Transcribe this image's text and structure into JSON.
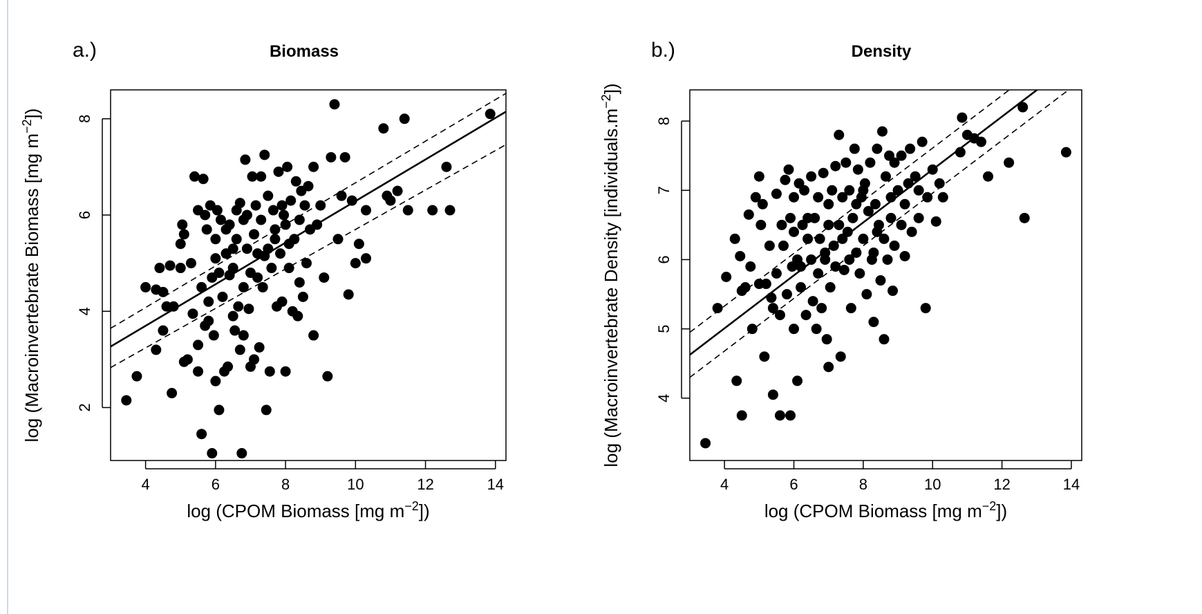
{
  "chart_data": [
    {
      "type": "scatter",
      "panel_label": "a.)",
      "title": "Biomass",
      "xlabel": "log (CPOM Biomass [mg m⁻²])",
      "ylabel": "log (Macroinvertebrate Biomass [mg m⁻²])",
      "xlim": [
        3.0,
        14.3
      ],
      "ylim": [
        0.9,
        8.6
      ],
      "xticks": [
        "4",
        "6",
        "8",
        "10",
        "12",
        "14"
      ],
      "yticks": [
        "2",
        "4",
        "6",
        "8"
      ],
      "fit": {
        "intercept": 1.97,
        "slope": 0.432
      },
      "ci_upper": {
        "intercept": 2.35,
        "slope": 0.432
      },
      "ci_lower": {
        "intercept": 1.6,
        "slope": 0.41
      },
      "points": [
        [
          3.45,
          2.15
        ],
        [
          3.75,
          2.65
        ],
        [
          4.0,
          4.5
        ],
        [
          4.3,
          4.45
        ],
        [
          4.3,
          3.2
        ],
        [
          4.4,
          4.9
        ],
        [
          4.5,
          4.4
        ],
        [
          4.5,
          3.6
        ],
        [
          4.6,
          4.1
        ],
        [
          4.7,
          4.95
        ],
        [
          4.75,
          2.3
        ],
        [
          4.8,
          4.1
        ],
        [
          5.0,
          4.9
        ],
        [
          5.0,
          5.4
        ],
        [
          5.05,
          5.8
        ],
        [
          5.1,
          2.95
        ],
        [
          5.1,
          5.6
        ],
        [
          5.2,
          3.0
        ],
        [
          5.3,
          5.0
        ],
        [
          5.35,
          3.95
        ],
        [
          5.4,
          6.8
        ],
        [
          5.5,
          3.3
        ],
        [
          5.5,
          2.75
        ],
        [
          5.5,
          6.1
        ],
        [
          5.6,
          4.5
        ],
        [
          5.6,
          1.45
        ],
        [
          5.65,
          6.75
        ],
        [
          5.7,
          3.7
        ],
        [
          5.7,
          6.0
        ],
        [
          5.75,
          5.7
        ],
        [
          5.8,
          4.2
        ],
        [
          5.8,
          3.8
        ],
        [
          5.85,
          6.2
        ],
        [
          5.9,
          1.05
        ],
        [
          5.9,
          4.7
        ],
        [
          5.95,
          3.5
        ],
        [
          6.0,
          2.55
        ],
        [
          6.0,
          5.5
        ],
        [
          6.05,
          6.1
        ],
        [
          6.1,
          4.8
        ],
        [
          6.1,
          1.95
        ],
        [
          6.15,
          5.9
        ],
        [
          6.2,
          4.3
        ],
        [
          6.25,
          2.75
        ],
        [
          6.3,
          5.2
        ],
        [
          6.35,
          2.85
        ],
        [
          6.4,
          4.75
        ],
        [
          6.4,
          5.8
        ],
        [
          6.5,
          3.9
        ],
        [
          6.5,
          4.9
        ],
        [
          6.55,
          3.6
        ],
        [
          6.6,
          5.5
        ],
        [
          6.6,
          6.1
        ],
        [
          6.65,
          4.1
        ],
        [
          6.7,
          3.2
        ],
        [
          6.7,
          6.25
        ],
        [
          6.75,
          1.05
        ],
        [
          6.8,
          3.5
        ],
        [
          6.8,
          4.5
        ],
        [
          6.85,
          7.15
        ],
        [
          6.9,
          5.3
        ],
        [
          6.9,
          6.0
        ],
        [
          6.95,
          4.05
        ],
        [
          7.0,
          4.8
        ],
        [
          7.0,
          2.85
        ],
        [
          7.05,
          6.8
        ],
        [
          7.1,
          5.6
        ],
        [
          7.1,
          3.0
        ],
        [
          7.15,
          6.2
        ],
        [
          7.2,
          4.7
        ],
        [
          7.25,
          3.25
        ],
        [
          7.3,
          5.9
        ],
        [
          7.3,
          6.8
        ],
        [
          7.35,
          4.5
        ],
        [
          7.4,
          7.25
        ],
        [
          7.4,
          5.15
        ],
        [
          7.45,
          1.95
        ],
        [
          7.5,
          5.3
        ],
        [
          7.5,
          6.4
        ],
        [
          7.55,
          2.75
        ],
        [
          7.6,
          4.9
        ],
        [
          7.65,
          6.1
        ],
        [
          7.7,
          5.5
        ],
        [
          7.75,
          4.1
        ],
        [
          7.8,
          6.9
        ],
        [
          7.85,
          5.2
        ],
        [
          7.9,
          4.2
        ],
        [
          7.95,
          6.0
        ],
        [
          8.0,
          2.75
        ],
        [
          8.0,
          5.8
        ],
        [
          8.05,
          7.0
        ],
        [
          8.1,
          4.9
        ],
        [
          8.15,
          6.3
        ],
        [
          8.2,
          4.0
        ],
        [
          8.25,
          5.5
        ],
        [
          8.3,
          6.7
        ],
        [
          8.35,
          3.9
        ],
        [
          8.4,
          5.9
        ],
        [
          8.45,
          6.5
        ],
        [
          8.5,
          4.3
        ],
        [
          8.55,
          6.2
        ],
        [
          8.6,
          5.0
        ],
        [
          8.65,
          6.6
        ],
        [
          8.7,
          5.7
        ],
        [
          8.8,
          7.0
        ],
        [
          8.8,
          3.5
        ],
        [
          8.9,
          5.8
        ],
        [
          9.0,
          6.2
        ],
        [
          9.1,
          4.7
        ],
        [
          9.2,
          2.65
        ],
        [
          9.3,
          7.2
        ],
        [
          9.4,
          8.3
        ],
        [
          9.5,
          5.5
        ],
        [
          9.6,
          6.4
        ],
        [
          9.7,
          7.2
        ],
        [
          9.8,
          4.35
        ],
        [
          9.9,
          6.3
        ],
        [
          10.0,
          5.0
        ],
        [
          10.1,
          5.4
        ],
        [
          10.3,
          5.1
        ],
        [
          10.3,
          6.1
        ],
        [
          10.8,
          7.8
        ],
        [
          10.9,
          6.4
        ],
        [
          11.0,
          6.3
        ],
        [
          11.2,
          6.5
        ],
        [
          11.4,
          8.0
        ],
        [
          11.5,
          6.1
        ],
        [
          12.2,
          6.1
        ],
        [
          12.6,
          7.0
        ],
        [
          12.7,
          6.1
        ],
        [
          13.85,
          8.1
        ],
        [
          6.0,
          5.1
        ],
        [
          6.3,
          5.7
        ],
        [
          6.8,
          5.9
        ],
        [
          7.2,
          5.2
        ],
        [
          7.7,
          5.7
        ],
        [
          8.1,
          5.4
        ],
        [
          8.4,
          4.6
        ],
        [
          7.9,
          6.2
        ],
        [
          6.5,
          5.3
        ]
      ]
    },
    {
      "type": "scatter",
      "panel_label": "b.)",
      "title": "Density",
      "xlabel": "log (CPOM Biomass [mg m⁻²])",
      "ylabel": "log (Macroinvertebrate Density [individuals.m⁻²])",
      "xlim": [
        3.0,
        14.3
      ],
      "ylim": [
        3.1,
        8.45
      ],
      "xticks": [
        "4",
        "6",
        "8",
        "10",
        "12",
        "14"
      ],
      "yticks": [
        "4",
        "5",
        "6",
        "7",
        "8"
      ],
      "fit": {
        "intercept": 3.48,
        "slope": 0.382
      },
      "ci_upper": {
        "intercept": 3.81,
        "slope": 0.38
      },
      "ci_lower": {
        "intercept": 3.16,
        "slope": 0.38
      },
      "points": [
        [
          3.45,
          3.35
        ],
        [
          3.8,
          5.3
        ],
        [
          4.05,
          5.75
        ],
        [
          4.3,
          6.3
        ],
        [
          4.35,
          4.25
        ],
        [
          4.45,
          6.05
        ],
        [
          4.5,
          3.75
        ],
        [
          4.5,
          5.55
        ],
        [
          4.6,
          5.6
        ],
        [
          4.7,
          6.65
        ],
        [
          4.75,
          5.9
        ],
        [
          4.8,
          5.0
        ],
        [
          4.9,
          6.9
        ],
        [
          5.0,
          7.2
        ],
        [
          5.0,
          5.65
        ],
        [
          5.05,
          6.5
        ],
        [
          5.1,
          6.8
        ],
        [
          5.15,
          4.6
        ],
        [
          5.2,
          5.65
        ],
        [
          5.3,
          6.2
        ],
        [
          5.35,
          5.45
        ],
        [
          5.4,
          5.3
        ],
        [
          5.4,
          4.05
        ],
        [
          5.5,
          6.95
        ],
        [
          5.6,
          5.2
        ],
        [
          5.6,
          3.75
        ],
        [
          5.65,
          6.5
        ],
        [
          5.7,
          6.2
        ],
        [
          5.75,
          7.15
        ],
        [
          5.8,
          5.5
        ],
        [
          5.85,
          7.3
        ],
        [
          5.9,
          3.75
        ],
        [
          5.9,
          6.6
        ],
        [
          5.95,
          5.9
        ],
        [
          6.0,
          5.0
        ],
        [
          6.0,
          6.9
        ],
        [
          6.1,
          4.25
        ],
        [
          6.1,
          6.0
        ],
        [
          6.15,
          7.1
        ],
        [
          6.2,
          5.6
        ],
        [
          6.25,
          6.5
        ],
        [
          6.3,
          7.0
        ],
        [
          6.35,
          5.2
        ],
        [
          6.4,
          6.3
        ],
        [
          6.5,
          6.0
        ],
        [
          6.5,
          7.2
        ],
        [
          6.55,
          5.4
        ],
        [
          6.6,
          6.6
        ],
        [
          6.65,
          5.0
        ],
        [
          6.7,
          6.9
        ],
        [
          6.7,
          5.8
        ],
        [
          6.75,
          6.3
        ],
        [
          6.8,
          5.3
        ],
        [
          6.85,
          7.25
        ],
        [
          6.9,
          6.1
        ],
        [
          6.95,
          4.85
        ],
        [
          7.0,
          6.5
        ],
        [
          7.0,
          4.45
        ],
        [
          7.05,
          5.6
        ],
        [
          7.1,
          7.0
        ],
        [
          7.15,
          6.2
        ],
        [
          7.2,
          5.9
        ],
        [
          7.2,
          7.35
        ],
        [
          7.3,
          6.5
        ],
        [
          7.3,
          7.8
        ],
        [
          7.35,
          4.6
        ],
        [
          7.4,
          6.9
        ],
        [
          7.45,
          5.85
        ],
        [
          7.5,
          7.4
        ],
        [
          7.55,
          6.4
        ],
        [
          7.6,
          7.0
        ],
        [
          7.65,
          5.3
        ],
        [
          7.7,
          6.6
        ],
        [
          7.75,
          7.6
        ],
        [
          7.8,
          6.1
        ],
        [
          7.85,
          7.3
        ],
        [
          7.9,
          5.8
        ],
        [
          7.95,
          6.9
        ],
        [
          8.0,
          6.3
        ],
        [
          8.05,
          7.1
        ],
        [
          8.1,
          5.5
        ],
        [
          8.15,
          6.7
        ],
        [
          8.2,
          7.4
        ],
        [
          8.25,
          6.0
        ],
        [
          8.3,
          5.1
        ],
        [
          8.35,
          6.8
        ],
        [
          8.4,
          7.6
        ],
        [
          8.45,
          6.5
        ],
        [
          8.5,
          5.7
        ],
        [
          8.55,
          7.85
        ],
        [
          8.6,
          4.85
        ],
        [
          8.6,
          6.3
        ],
        [
          8.65,
          7.2
        ],
        [
          8.7,
          6.0
        ],
        [
          8.75,
          7.5
        ],
        [
          8.8,
          6.6
        ],
        [
          8.85,
          5.55
        ],
        [
          8.9,
          7.4
        ],
        [
          9.0,
          7.0
        ],
        [
          9.1,
          6.5
        ],
        [
          9.2,
          6.05
        ],
        [
          9.3,
          7.1
        ],
        [
          9.35,
          7.6
        ],
        [
          9.4,
          6.4
        ],
        [
          9.5,
          7.2
        ],
        [
          9.6,
          6.6
        ],
        [
          9.7,
          7.7
        ],
        [
          9.8,
          5.3
        ],
        [
          9.85,
          6.9
        ],
        [
          10.0,
          7.3
        ],
        [
          10.1,
          6.55
        ],
        [
          10.2,
          7.1
        ],
        [
          10.3,
          6.9
        ],
        [
          10.8,
          7.55
        ],
        [
          10.85,
          8.05
        ],
        [
          11.0,
          7.8
        ],
        [
          11.2,
          7.75
        ],
        [
          11.4,
          7.7
        ],
        [
          11.6,
          7.2
        ],
        [
          12.2,
          7.4
        ],
        [
          12.6,
          8.2
        ],
        [
          12.65,
          6.6
        ],
        [
          13.85,
          7.55
        ],
        [
          6.0,
          6.4
        ],
        [
          6.4,
          6.6
        ],
        [
          6.9,
          6.0
        ],
        [
          7.4,
          6.3
        ],
        [
          7.8,
          6.8
        ],
        [
          8.3,
          6.1
        ],
        [
          8.8,
          6.9
        ],
        [
          9.1,
          7.5
        ],
        [
          5.5,
          5.8
        ],
        [
          6.2,
          5.9
        ],
        [
          7.0,
          6.8
        ],
        [
          7.6,
          6.0
        ],
        [
          8.0,
          7.0
        ],
        [
          8.4,
          6.4
        ],
        [
          8.9,
          6.2
        ],
        [
          9.2,
          6.8
        ],
        [
          9.6,
          7.0
        ]
      ]
    }
  ]
}
